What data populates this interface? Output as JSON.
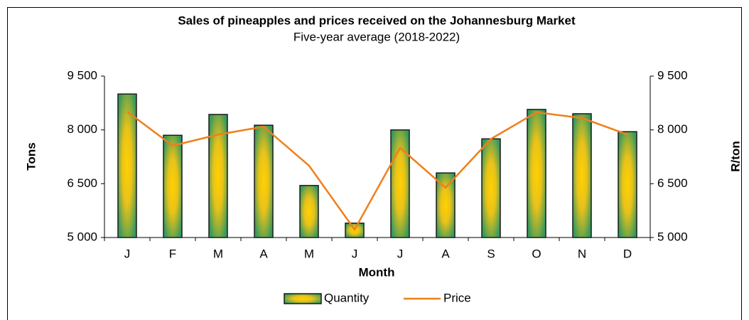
{
  "chart_data": {
    "type": "bar_line",
    "title": "Sales of pineapples and prices received on the Johannesburg Market",
    "subtitle": "Five-year average (2018-2022)",
    "x_label": "Month",
    "y_label": "Tons",
    "y2_label": "R/ton",
    "categories": [
      "J",
      "F",
      "M",
      "A",
      "M",
      "J",
      "J",
      "A",
      "S",
      "O",
      "N",
      "D"
    ],
    "series": [
      {
        "name": "Quantity",
        "type": "bar",
        "color": "#3a9a5c",
        "values": [
          9000,
          7850,
          8430,
          8130,
          6450,
          5400,
          8000,
          6800,
          7750,
          8570,
          8450,
          7950
        ]
      },
      {
        "name": "Price",
        "type": "line",
        "axis": "y2",
        "color": "#f07f1b",
        "values": [
          8510,
          7560,
          7870,
          8090,
          7000,
          5220,
          7500,
          6390,
          7750,
          8490,
          8330,
          7870
        ]
      }
    ],
    "ylim": [
      5000,
      9500
    ],
    "yticks": [
      {
        "value": 5000,
        "label": "5 000"
      },
      {
        "value": 6500,
        "label": "6 500"
      },
      {
        "value": 8000,
        "label": "8 000"
      },
      {
        "value": 9500,
        "label": "9 500"
      }
    ],
    "y2lim": [
      5000,
      9500
    ],
    "y2ticks": [
      {
        "value": 5000,
        "label": "5 000"
      },
      {
        "value": 6500,
        "label": "6 500"
      },
      {
        "value": 8000,
        "label": "8 000"
      },
      {
        "value": 9500,
        "label": "9 500"
      }
    ],
    "legend": "bottom"
  }
}
